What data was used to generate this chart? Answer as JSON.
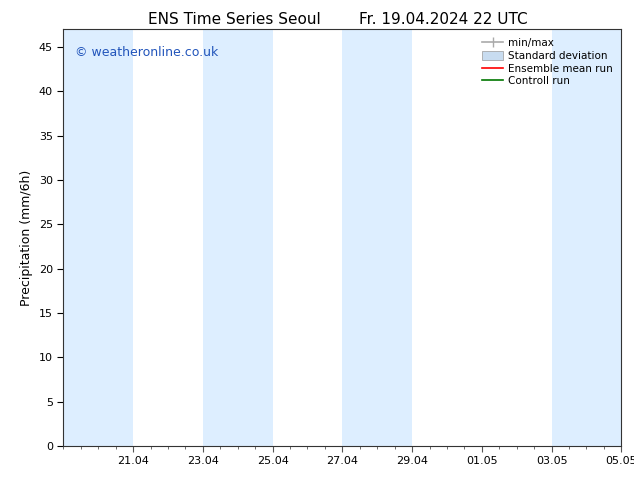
{
  "title_left": "ENS Time Series Seoul",
  "title_right": "Fr. 19.04.2024 22 UTC",
  "ylabel": "Precipitation (mm/6h)",
  "watermark": "© weatheronline.co.uk",
  "ylim": [
    0,
    47
  ],
  "yticks": [
    0,
    5,
    10,
    15,
    20,
    25,
    30,
    35,
    40,
    45
  ],
  "background_color": "#ffffff",
  "plot_bg_color": "#ffffff",
  "band_color": "#ddeeff",
  "xlim": [
    0,
    16
  ],
  "xtick_labels": [
    "21.04",
    "23.04",
    "25.04",
    "27.04",
    "29.04",
    "01.05",
    "03.05",
    "05.05"
  ],
  "xtick_positions": [
    2,
    4,
    6,
    8,
    10,
    12,
    14,
    16
  ],
  "shaded_bands": [
    [
      0,
      2
    ],
    [
      4,
      6
    ],
    [
      8,
      10
    ],
    [
      14,
      16
    ]
  ],
  "legend_items": [
    {
      "label": "min/max",
      "color": "#aaaaaa",
      "lw": 1.2,
      "style": "solid"
    },
    {
      "label": "Standard deviation",
      "color": "#c8dcf0",
      "lw": 6,
      "style": "solid"
    },
    {
      "label": "Ensemble mean run",
      "color": "#ff0000",
      "lw": 1.2,
      "style": "solid"
    },
    {
      "label": "Controll run",
      "color": "#007700",
      "lw": 1.2,
      "style": "solid"
    }
  ],
  "title_fontsize": 11,
  "label_fontsize": 9,
  "tick_fontsize": 8,
  "watermark_color": "#2255bb",
  "watermark_fontsize": 9,
  "legend_fontsize": 7.5
}
